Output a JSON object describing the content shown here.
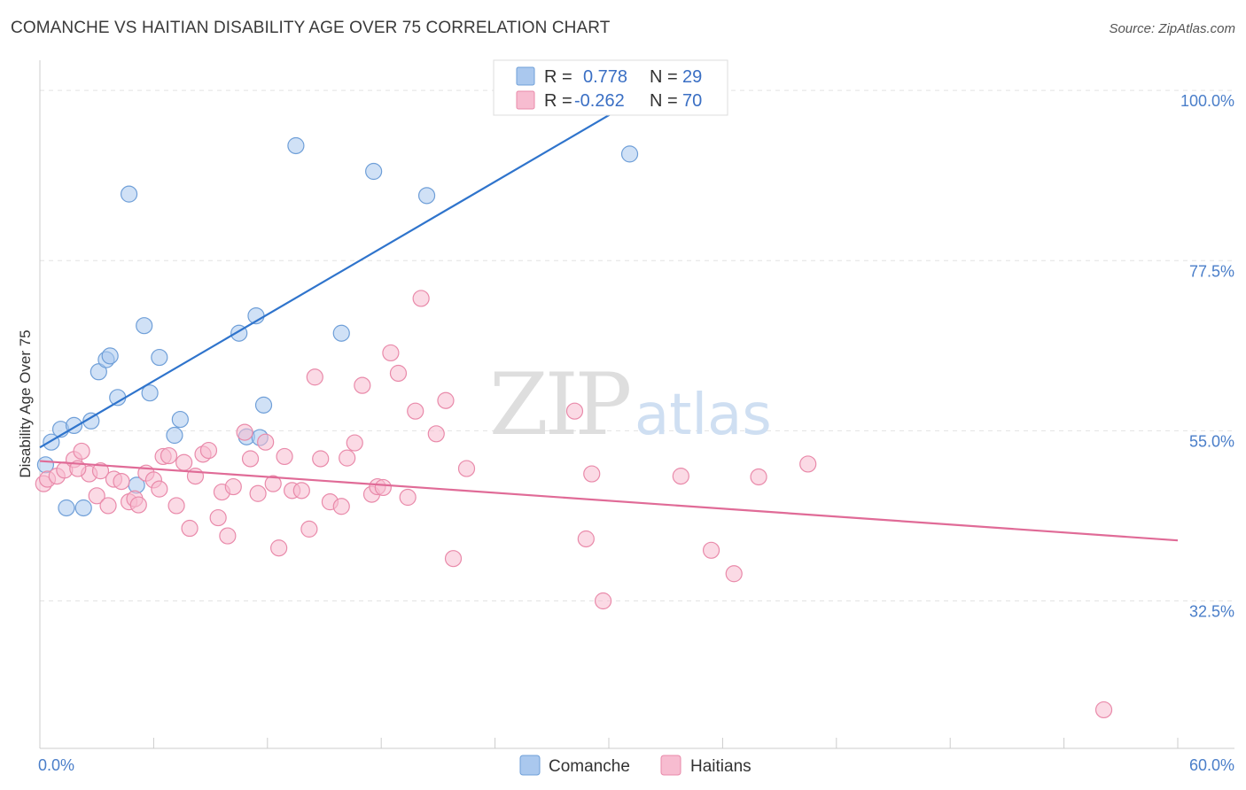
{
  "title": "COMANCHE VS HAITIAN DISABILITY AGE OVER 75 CORRELATION CHART",
  "source": "Source: ZipAtlas.com",
  "watermark": {
    "zip": "ZIP",
    "atlas": "atlas"
  },
  "colors": {
    "comanche_fill": "#aac8ee",
    "comanche_stroke": "#6f9fd8",
    "comanche_line": "#2f74cc",
    "haitians_fill": "#f7bcd0",
    "haitians_stroke": "#e98aaa",
    "haitians_line": "#e06b97",
    "tick_label": "#4a7ec9",
    "grid": "#e3e3e3"
  },
  "legend": {
    "rows": [
      {
        "r_label": "R =",
        "r_value": "0.778",
        "n_label": "N =",
        "n_value": "29"
      },
      {
        "r_label": "R =",
        "r_value": "-0.262",
        "n_label": "N =",
        "n_value": "70"
      }
    ]
  },
  "chart_data": {
    "type": "scatter",
    "xlabel": "",
    "ylabel": "Disability Age Over 75",
    "xlim": [
      0,
      60
    ],
    "ylim": [
      13,
      104
    ],
    "x_tick_labels": [
      "0.0%",
      "60.0%"
    ],
    "y_ticks": [
      32.5,
      55.0,
      77.5,
      100.0
    ],
    "y_tick_labels": [
      "32.5%",
      "55.0%",
      "77.5%",
      "100.0%"
    ],
    "legend_position": "top-center",
    "bottom_legend": [
      "Comanche",
      "Haitians"
    ],
    "series": [
      {
        "name": "Comanche",
        "trend": {
          "x": [
            0,
            33.6
          ],
          "y": [
            52.8,
            102.0
          ]
        },
        "points": [
          [
            0.3,
            50.5
          ],
          [
            0.6,
            53.5
          ],
          [
            1.1,
            55.2
          ],
          [
            1.8,
            55.7
          ],
          [
            2.7,
            56.3
          ],
          [
            3.1,
            62.8
          ],
          [
            3.5,
            64.4
          ],
          [
            3.7,
            64.9
          ],
          [
            4.1,
            59.4
          ],
          [
            4.7,
            86.3
          ],
          [
            5.5,
            68.9
          ],
          [
            5.8,
            60.0
          ],
          [
            6.3,
            64.7
          ],
          [
            7.4,
            56.5
          ],
          [
            7.1,
            54.4
          ],
          [
            10.5,
            67.9
          ],
          [
            10.9,
            54.2
          ],
          [
            11.4,
            70.2
          ],
          [
            11.6,
            54.1
          ],
          [
            11.8,
            58.4
          ],
          [
            13.5,
            92.7
          ],
          [
            15.9,
            67.9
          ],
          [
            17.6,
            89.3
          ],
          [
            20.4,
            86.1
          ],
          [
            33.4,
            102.0
          ],
          [
            31.1,
            91.6
          ],
          [
            5.1,
            47.8
          ],
          [
            1.4,
            44.8
          ],
          [
            2.3,
            44.8
          ]
        ]
      },
      {
        "name": "Haitians",
        "trend": {
          "x": [
            0,
            60
          ],
          "y": [
            51.0,
            40.5
          ]
        },
        "points": [
          [
            0.2,
            48.0
          ],
          [
            0.4,
            48.6
          ],
          [
            0.9,
            49.0
          ],
          [
            1.3,
            49.8
          ],
          [
            1.8,
            51.2
          ],
          [
            2.2,
            52.3
          ],
          [
            2.6,
            49.3
          ],
          [
            3.0,
            46.4
          ],
          [
            3.2,
            49.7
          ],
          [
            3.6,
            45.1
          ],
          [
            3.9,
            48.6
          ],
          [
            4.3,
            48.3
          ],
          [
            4.7,
            45.6
          ],
          [
            5.0,
            46.0
          ],
          [
            5.2,
            45.2
          ],
          [
            5.6,
            49.4
          ],
          [
            6.0,
            48.5
          ],
          [
            6.3,
            47.3
          ],
          [
            6.5,
            51.6
          ],
          [
            6.8,
            51.7
          ],
          [
            7.2,
            45.1
          ],
          [
            7.6,
            50.8
          ],
          [
            7.9,
            42.1
          ],
          [
            8.2,
            49.0
          ],
          [
            8.6,
            51.9
          ],
          [
            8.9,
            52.4
          ],
          [
            9.4,
            43.5
          ],
          [
            9.6,
            46.9
          ],
          [
            9.9,
            41.1
          ],
          [
            10.2,
            47.6
          ],
          [
            10.8,
            54.8
          ],
          [
            11.1,
            51.3
          ],
          [
            11.5,
            46.7
          ],
          [
            11.9,
            53.5
          ],
          [
            12.3,
            48.0
          ],
          [
            12.6,
            39.5
          ],
          [
            12.9,
            51.6
          ],
          [
            13.3,
            47.1
          ],
          [
            13.8,
            47.1
          ],
          [
            14.2,
            42.0
          ],
          [
            14.5,
            62.1
          ],
          [
            14.8,
            51.3
          ],
          [
            15.3,
            45.6
          ],
          [
            15.9,
            45.0
          ],
          [
            16.2,
            51.4
          ],
          [
            16.6,
            53.4
          ],
          [
            17.0,
            61.0
          ],
          [
            17.5,
            46.6
          ],
          [
            17.8,
            47.6
          ],
          [
            18.1,
            47.5
          ],
          [
            18.5,
            65.3
          ],
          [
            18.9,
            62.6
          ],
          [
            19.4,
            46.2
          ],
          [
            19.8,
            57.6
          ],
          [
            20.1,
            72.5
          ],
          [
            20.9,
            54.6
          ],
          [
            21.4,
            59.0
          ],
          [
            21.8,
            38.1
          ],
          [
            22.5,
            50.0
          ],
          [
            28.2,
            57.6
          ],
          [
            28.8,
            40.7
          ],
          [
            29.1,
            49.3
          ],
          [
            29.7,
            32.5
          ],
          [
            33.8,
            49.0
          ],
          [
            35.4,
            39.2
          ],
          [
            36.6,
            36.1
          ],
          [
            37.9,
            48.9
          ],
          [
            40.5,
            50.6
          ],
          [
            56.1,
            18.1
          ],
          [
            2.0,
            50.0
          ]
        ]
      }
    ]
  }
}
